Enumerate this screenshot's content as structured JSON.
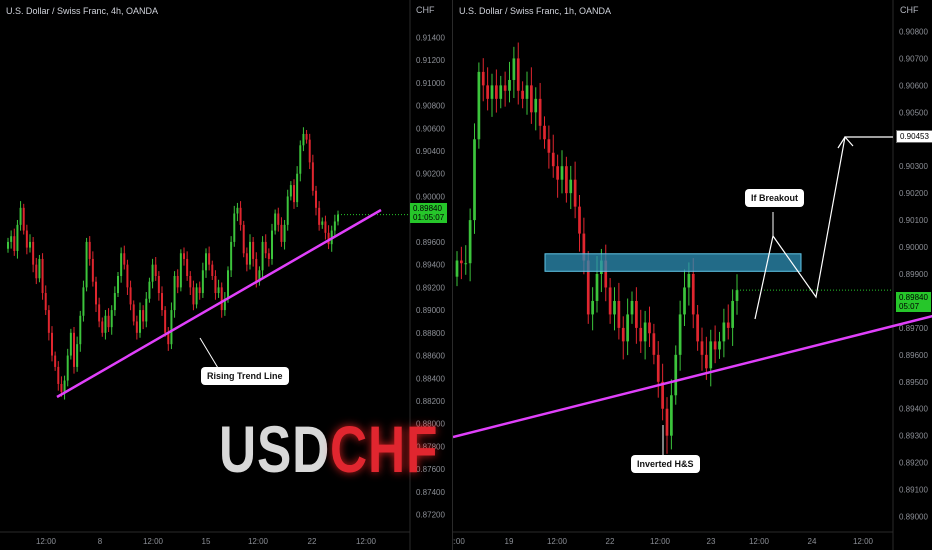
{
  "left": {
    "title": "U.S. Dollar / Swiss Franc, 4h, OANDA",
    "unit": "CHF",
    "price_label": "0.89840",
    "timer_label": "01:05:07",
    "annotation": "Rising Trend Line",
    "y_ticks": [
      "0.91400",
      "0.91200",
      "0.91000",
      "0.90800",
      "0.90600",
      "0.90400",
      "0.90200",
      "0.90000",
      "0.89800",
      "0.89600",
      "0.89400",
      "0.89200",
      "0.89000",
      "0.88800",
      "0.88600",
      "0.88400",
      "0.88200",
      "0.88000",
      "0.87800",
      "0.87600",
      "0.87400",
      "0.87200"
    ],
    "x_ticks": [
      "12:00",
      "8",
      "12:00",
      "15",
      "12:00",
      "22",
      "12:00"
    ]
  },
  "right": {
    "title": "U.S. Dollar / Swiss Franc, 1h, OANDA",
    "unit": "CHF",
    "price_label": "0.89840",
    "timer_label": "05:07",
    "target_label": "0.90453",
    "annotation_breakout": "If Breakout",
    "annotation_pattern": "Inverted H&S",
    "y_ticks": [
      "0.90800",
      "0.90700",
      "0.90600",
      "0.90500",
      "0.90400",
      "0.90300",
      "0.90200",
      "0.90100",
      "0.90000",
      "0.89900",
      "0.89800",
      "0.89700",
      "0.89600",
      "0.89500",
      "0.89400",
      "0.89300",
      "0.89200",
      "0.89100",
      "0.89000"
    ],
    "x_ticks": [
      "2:00",
      "19",
      "12:00",
      "22",
      "12:00",
      "23",
      "12:00",
      "24",
      "12:00"
    ]
  },
  "logo": {
    "usd": "USD",
    "chf": "CHF"
  },
  "colors": {
    "up": "#26a69a",
    "down": "#e53935",
    "up_candle": "#3cc43c",
    "down_candle": "#e0262f",
    "trendline": "#e040fb",
    "zone": "#2d8fb5",
    "background": "#000000"
  },
  "chart_data": [
    {
      "type": "candlestick",
      "title": "U.S. Dollar / Swiss Franc, 4h, OANDA",
      "ylabel": "CHF",
      "ylim": [
        0.871,
        0.915
      ],
      "x": [
        "12:00",
        "8",
        "12:00",
        "15",
        "12:00",
        "22",
        "12:00"
      ],
      "last_price": 0.8984,
      "close_path": [
        0.896,
        0.8965,
        0.8952,
        0.8975,
        0.899,
        0.897,
        0.8955,
        0.896,
        0.894,
        0.8928,
        0.8945,
        0.8915,
        0.89,
        0.888,
        0.886,
        0.885,
        0.8835,
        0.8828,
        0.8838,
        0.886,
        0.888,
        0.885,
        0.887,
        0.8895,
        0.892,
        0.896,
        0.8945,
        0.8925,
        0.8905,
        0.889,
        0.888,
        0.8895,
        0.8885,
        0.89,
        0.8915,
        0.893,
        0.895,
        0.894,
        0.892,
        0.8905,
        0.889,
        0.888,
        0.89,
        0.889,
        0.891,
        0.8925,
        0.894,
        0.893,
        0.8915,
        0.89,
        0.888,
        0.887,
        0.89,
        0.893,
        0.892,
        0.895,
        0.8945,
        0.893,
        0.892,
        0.8905,
        0.892,
        0.8915,
        0.8935,
        0.895,
        0.894,
        0.893,
        0.8915,
        0.892,
        0.89,
        0.891,
        0.8935,
        0.896,
        0.8985,
        0.899,
        0.8975,
        0.895,
        0.894,
        0.896,
        0.8945,
        0.8925,
        0.8935,
        0.896,
        0.895,
        0.8945,
        0.897,
        0.8985,
        0.8975,
        0.896,
        0.8975,
        0.9,
        0.901,
        0.8995,
        0.902,
        0.9045,
        0.9055,
        0.905,
        0.903,
        0.9005,
        0.899,
        0.8975,
        0.8978,
        0.8968,
        0.8958,
        0.897,
        0.8978,
        0.8984
      ],
      "series": [
        {
          "name": "",
          "type": "trendline",
          "points": [
            [
              "12:00",
              0.882
            ],
            [
              "22",
              0.8955
            ]
          ]
        }
      ]
    },
    {
      "type": "candlestick",
      "title": "U.S. Dollar / Swiss Franc, 1h, OANDA",
      "ylabel": "CHF",
      "ylim": [
        0.8895,
        0.9085
      ],
      "x": [
        "2:00",
        "19",
        "12:00",
        "22",
        "12:00",
        "23",
        "12:00",
        "24",
        "12:00"
      ],
      "last_price": 0.8984,
      "target": 0.90453,
      "zone": [
        0.8991,
        0.89975
      ],
      "close_path": [
        0.8995,
        0.8994,
        0.8994,
        0.901,
        0.904,
        0.9065,
        0.906,
        0.9055,
        0.906,
        0.9055,
        0.906,
        0.9058,
        0.9062,
        0.907,
        0.9058,
        0.9055,
        0.906,
        0.905,
        0.9055,
        0.9045,
        0.904,
        0.9035,
        0.903,
        0.9025,
        0.903,
        0.902,
        0.9025,
        0.9015,
        0.9005,
        0.8995,
        0.8975,
        0.898,
        0.899,
        0.8995,
        0.8985,
        0.8975,
        0.898,
        0.897,
        0.8965,
        0.8975,
        0.898,
        0.897,
        0.8965,
        0.8972,
        0.8968,
        0.896,
        0.895,
        0.894,
        0.893,
        0.8945,
        0.896,
        0.8975,
        0.8985,
        0.899,
        0.8975,
        0.8965,
        0.896,
        0.8955,
        0.8965,
        0.8962,
        0.8965,
        0.8972,
        0.897,
        0.898,
        0.8984
      ],
      "series": [
        {
          "name": "",
          "type": "trendline",
          "points": [
            [
              0,
              0.893
            ],
            [
              1,
              0.896
            ]
          ]
        },
        {
          "name": "",
          "type": "projection",
          "points": [
            [
              0.8955
            ],
            [
              0.9
            ],
            [
              0.8975
            ],
            [
              0.90453
            ]
          ]
        }
      ]
    }
  ]
}
